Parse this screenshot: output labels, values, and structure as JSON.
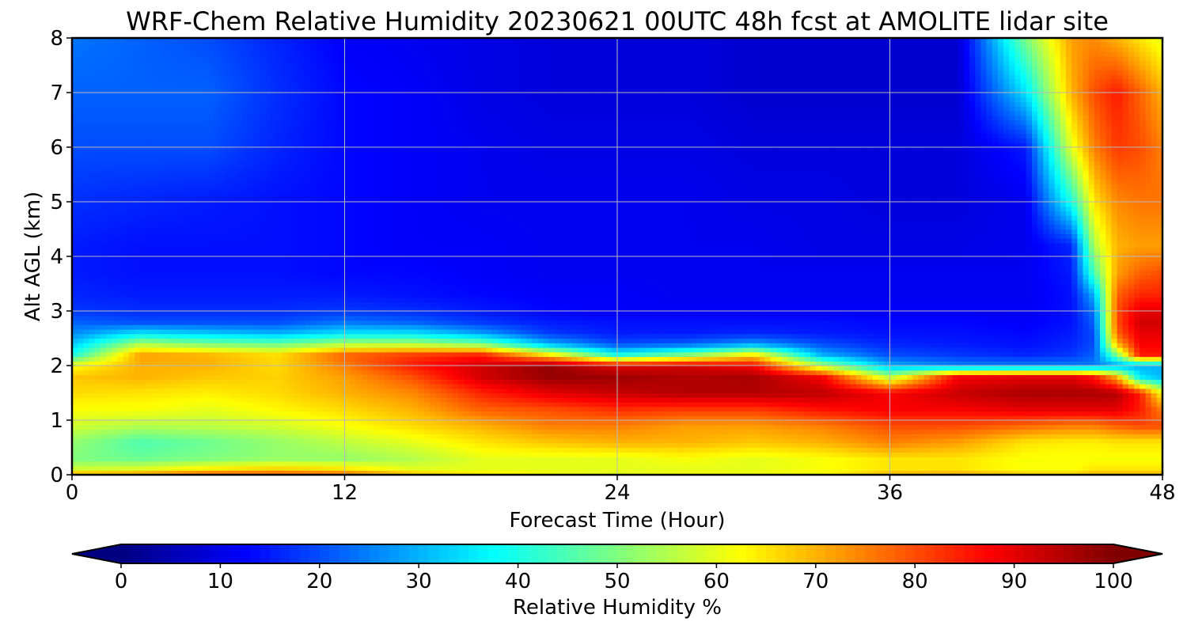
{
  "chart_data": {
    "type": "heatmap",
    "title": "WRF-Chem Relative Humidity 20230621 00UTC 48h fcst at AMOLITE lidar site",
    "xlabel": "Forecast Time (Hour)",
    "ylabel": "Alt AGL (km)",
    "xlim": [
      0,
      48
    ],
    "ylim": [
      0,
      8
    ],
    "xticks": [
      0,
      12,
      24,
      36,
      48
    ],
    "yticks": [
      0,
      1,
      2,
      3,
      4,
      5,
      6,
      7,
      8
    ],
    "grid": true,
    "colormap": "jet",
    "colorbar": {
      "label": "Relative Humidity %",
      "range": [
        0,
        100
      ],
      "ticks": [
        0,
        10,
        20,
        30,
        40,
        50,
        60,
        70,
        80,
        90,
        100
      ],
      "extend": "both",
      "orientation": "horizontal"
    },
    "x": [
      0,
      3,
      6,
      9,
      12,
      15,
      18,
      21,
      24,
      27,
      30,
      33,
      36,
      39,
      42,
      44,
      45,
      46,
      47,
      48
    ],
    "y": [
      0,
      0.1,
      0.3,
      0.6,
      0.9,
      1.2,
      1.5,
      1.8,
      2.0,
      2.2,
      2.4,
      2.6,
      2.8,
      3.0,
      3.3,
      3.7,
      4.2,
      5.0,
      6.0,
      7.0,
      8.0
    ],
    "z": [
      [
        72,
        75,
        80,
        80,
        78,
        70,
        65,
        62,
        60,
        62,
        62,
        62,
        70,
        72,
        68,
        68,
        70,
        70,
        70,
        70
      ],
      [
        58,
        60,
        65,
        68,
        66,
        60,
        60,
        60,
        60,
        60,
        60,
        62,
        65,
        65,
        62,
        62,
        65,
        65,
        65,
        65
      ],
      [
        50,
        48,
        50,
        52,
        52,
        55,
        60,
        60,
        60,
        62,
        60,
        62,
        65,
        65,
        62,
        62,
        62,
        62,
        62,
        62
      ],
      [
        52,
        45,
        48,
        52,
        56,
        60,
        65,
        68,
        70,
        70,
        68,
        70,
        75,
        72,
        65,
        64,
        64,
        65,
        65,
        65
      ],
      [
        58,
        55,
        56,
        58,
        62,
        66,
        70,
        75,
        75,
        72,
        72,
        75,
        80,
        80,
        77,
        75,
        75,
        78,
        80,
        80
      ],
      [
        62,
        62,
        60,
        63,
        66,
        70,
        78,
        80,
        83,
        82,
        82,
        86,
        88,
        88,
        90,
        90,
        90,
        90,
        85,
        75
      ],
      [
        66,
        65,
        64,
        66,
        70,
        74,
        84,
        90,
        93,
        95,
        95,
        94,
        88,
        93,
        96,
        96,
        96,
        95,
        85,
        62
      ],
      [
        68,
        70,
        68,
        67,
        72,
        80,
        92,
        98,
        97,
        95,
        96,
        88,
        55,
        88,
        90,
        90,
        85,
        70,
        35,
        30
      ],
      [
        62,
        70,
        70,
        66,
        75,
        85,
        92,
        98,
        90,
        92,
        88,
        55,
        30,
        25,
        25,
        25,
        25,
        28,
        30,
        30
      ],
      [
        40,
        72,
        70,
        66,
        78,
        82,
        85,
        65,
        40,
        50,
        65,
        30,
        20,
        18,
        16,
        18,
        22,
        50,
        85,
        85
      ],
      [
        32,
        55,
        50,
        48,
        55,
        55,
        50,
        30,
        20,
        22,
        28,
        20,
        16,
        15,
        14,
        16,
        20,
        70,
        88,
        88
      ],
      [
        26,
        35,
        32,
        30,
        35,
        35,
        28,
        18,
        15,
        15,
        16,
        15,
        14,
        14,
        13,
        15,
        20,
        78,
        90,
        90
      ],
      [
        22,
        20,
        20,
        20,
        24,
        22,
        18,
        15,
        14,
        14,
        14,
        14,
        13,
        13,
        12,
        14,
        22,
        80,
        92,
        92
      ],
      [
        18,
        17,
        17,
        17,
        18,
        17,
        15,
        13,
        12,
        12,
        12,
        12,
        12,
        12,
        12,
        14,
        24,
        80,
        90,
        90
      ],
      [
        16,
        15,
        15,
        15,
        15,
        14,
        13,
        12,
        12,
        11,
        11,
        11,
        11,
        11,
        11,
        14,
        30,
        78,
        84,
        84
      ],
      [
        15,
        14,
        14,
        14,
        13,
        13,
        12,
        11,
        11,
        11,
        11,
        11,
        11,
        11,
        11,
        15,
        45,
        72,
        78,
        80
      ],
      [
        15,
        14,
        14,
        14,
        13,
        12,
        12,
        11,
        11,
        11,
        11,
        10,
        10,
        10,
        11,
        16,
        55,
        70,
        72,
        72
      ],
      [
        17,
        16,
        15,
        14,
        13,
        12,
        11,
        11,
        11,
        11,
        10,
        10,
        9,
        9,
        11,
        40,
        65,
        74,
        76,
        76
      ],
      [
        20,
        20,
        20,
        16,
        13,
        12,
        11,
        10,
        10,
        10,
        9,
        9,
        9,
        9,
        15,
        60,
        75,
        82,
        80,
        75
      ],
      [
        22,
        22,
        22,
        17,
        13,
        12,
        10,
        9,
        9,
        9,
        8,
        8,
        8,
        8,
        35,
        70,
        80,
        85,
        78,
        70
      ],
      [
        24,
        22,
        20,
        16,
        12,
        11,
        10,
        9,
        9,
        9,
        8,
        8,
        8,
        8,
        50,
        72,
        74,
        70,
        65,
        60
      ]
    ]
  }
}
